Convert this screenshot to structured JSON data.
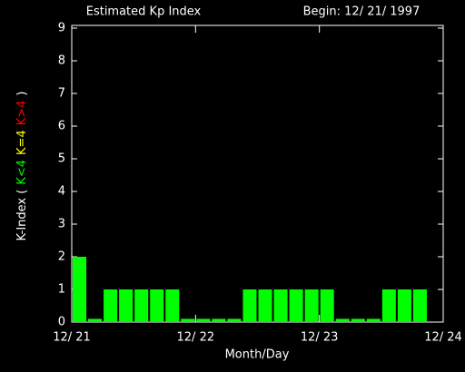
{
  "chart_data": {
    "type": "bar",
    "title": "Estimated Kp Index",
    "subtitle": "Begin: 12/ 21/ 1997",
    "x_label": "Month/Day",
    "y_label": "K-Index (",
    "y_label_end": ")",
    "legend": [
      {
        "label": "K<4",
        "color": "#00ff00"
      },
      {
        "label": "K=4",
        "color": "#ffff00"
      },
      {
        "label": "K>4",
        "color": "#ff0000"
      }
    ],
    "categories": [
      null,
      null,
      null,
      null,
      null,
      null,
      null,
      null,
      null,
      null,
      null,
      null,
      null,
      null,
      null,
      null,
      null,
      null,
      null,
      null,
      null,
      null,
      null,
      null
    ],
    "values": [
      2,
      0.1,
      1,
      1,
      1,
      1,
      1,
      0.1,
      0.1,
      0.1,
      0.1,
      1,
      1,
      1,
      1,
      1,
      1,
      0.1,
      0.1,
      0.1,
      1,
      1,
      1,
      null
    ],
    "color": "#00ff00",
    "xlim": [
      0,
      24
    ],
    "xticks": [
      {
        "value": 0,
        "label": "12/ 21"
      },
      {
        "value": 8,
        "label": "12/ 22"
      },
      {
        "value": 16,
        "label": "12/ 23"
      },
      {
        "value": 24,
        "label": "12/ 24"
      }
    ],
    "ylim": [
      0,
      9
    ],
    "yticks": [
      0,
      1,
      2,
      3,
      4,
      5,
      6,
      7,
      8,
      9
    ]
  }
}
